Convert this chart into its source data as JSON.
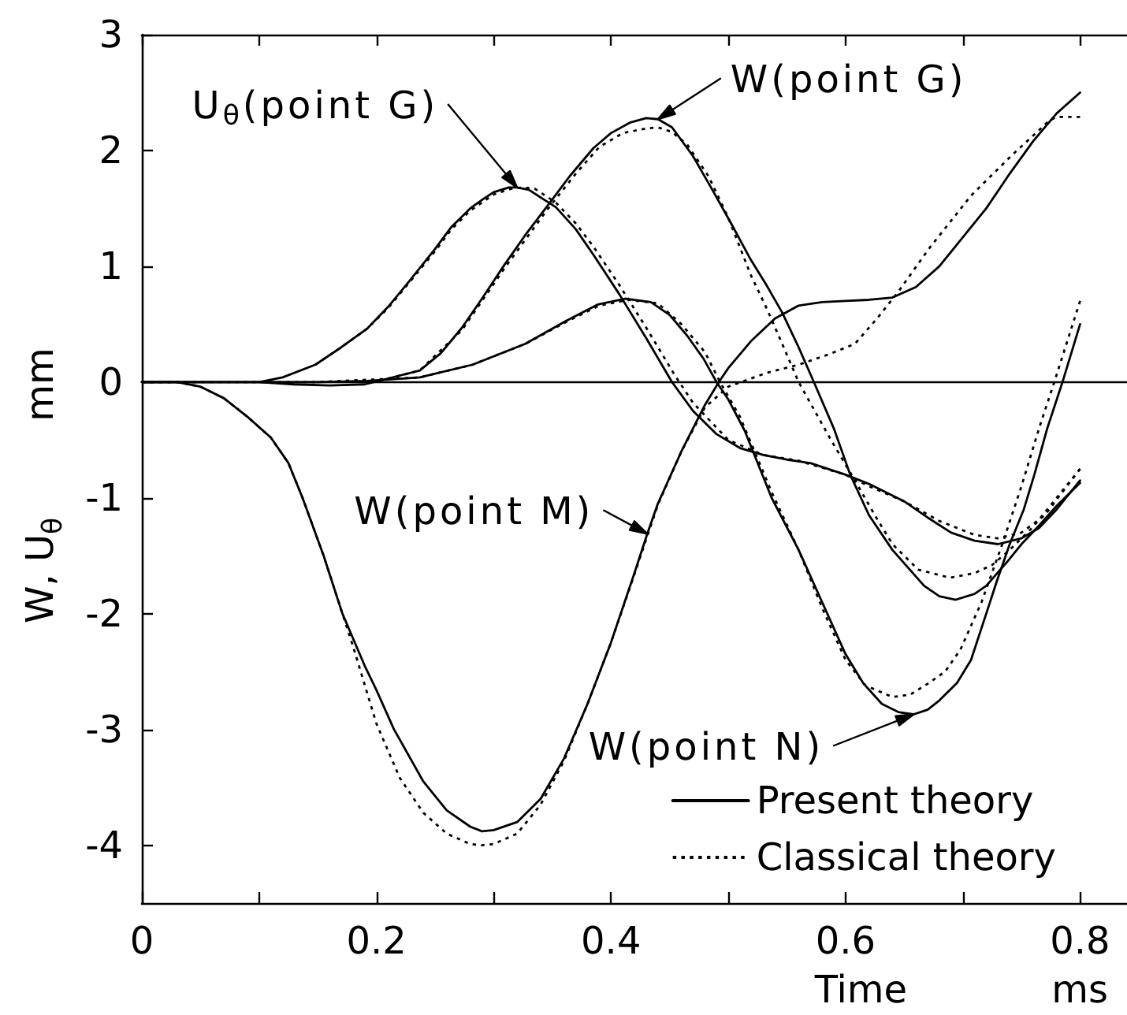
{
  "chart_data": {
    "type": "line",
    "xlabel": "Time            ms",
    "ylabel": "W, U$_{θ}$        mm",
    "xlim": [
      0,
      0.84
    ],
    "xticks": [
      0,
      {
        "value": 0.1,
        "label": null
      },
      0.2,
      {
        "value": 0.3,
        "label": null
      },
      0.4,
      {
        "value": 0.5,
        "label": null
      },
      0.6,
      {
        "value": 0.7,
        "label": null
      },
      0.8
    ],
    "ylim": [
      -4.5,
      3
    ],
    "yticks": [
      -4,
      -3,
      -2,
      -1,
      0,
      1,
      2,
      3
    ],
    "grid": false,
    "legend": "bottom right",
    "ref_lines": [
      {
        "axis": "y",
        "value": 0
      }
    ],
    "annotations": [
      {
        "text": "U$_{θ}$(point G)",
        "x": 0.32,
        "y": 1.68
      },
      {
        "text": "W(point G)",
        "x": 0.44,
        "y": 2.27
      },
      {
        "text": "W(point M)",
        "x": 0.431,
        "y": -1.31
      },
      {
        "text": "W(point N)",
        "x": 0.658,
        "y": -2.87
      }
    ],
    "series": [
      {
        "name": "Present theory",
        "color": "#000000",
        "line_style": "solid",
        "x": [
          0,
          0.1,
          0.13,
          0.16,
          0.19,
          0.21,
          0.237,
          0.255,
          0.273,
          0.29,
          0.309,
          0.327,
          0.345,
          0.365,
          0.385,
          0.4,
          0.416,
          0.43,
          0.44,
          0.452,
          0.47,
          0.487,
          0.503,
          0.519,
          0.533,
          0.546,
          0.56,
          0.573,
          0.59,
          0.604,
          0.62,
          0.64,
          0.667,
          0.68,
          0.694,
          0.71,
          0.72,
          0.738,
          0.75,
          0.765,
          0.78,
          0.8
        ],
        "values": [
          0,
          0,
          -0.02,
          -0.03,
          -0.02,
          0.03,
          0.1,
          0.25,
          0.47,
          0.72,
          1.01,
          1.27,
          1.51,
          1.78,
          2.02,
          2.15,
          2.24,
          2.28,
          2.27,
          2.2,
          1.95,
          1.65,
          1.36,
          1.06,
          0.83,
          0.6,
          0.3,
          0,
          -0.4,
          -0.8,
          -1.15,
          -1.45,
          -1.76,
          -1.85,
          -1.88,
          -1.83,
          -1.76,
          -1.55,
          -1.4,
          -1.24,
          -1.07,
          -0.87
        ]
      },
      {
        "name": "Classical theory",
        "color": "#000000",
        "line_style": "dotted",
        "x": [
          0.21,
          0.237,
          0.273,
          0.309,
          0.345,
          0.37,
          0.39,
          0.41,
          0.43,
          0.44,
          0.452,
          0.465,
          0.483,
          0.5,
          0.519,
          0.533,
          0.546,
          0.56,
          0.587,
          0.608,
          0.625,
          0.64,
          0.662,
          0.689,
          0.71,
          0.725,
          0.74,
          0.76,
          0.78,
          0.8
        ],
        "values": [
          0.03,
          0.1,
          0.45,
          0.98,
          1.48,
          1.8,
          2.03,
          2.15,
          2.19,
          2.2,
          2.16,
          2.05,
          1.78,
          1.42,
          0.93,
          0.63,
          0.33,
          0,
          -0.49,
          -0.85,
          -1.15,
          -1.4,
          -1.62,
          -1.69,
          -1.65,
          -1.58,
          -1.45,
          -1.25,
          -1.0,
          -0.75
        ]
      },
      {
        "color": "#000000",
        "line_style": "solid",
        "x": [
          0.1,
          0.12,
          0.148,
          0.17,
          0.192,
          0.21,
          0.228,
          0.25,
          0.264,
          0.28,
          0.291,
          0.3,
          0.313,
          0.32,
          0.33,
          0.353,
          0.37,
          0.385,
          0.407,
          0.43,
          0.452,
          0.47,
          0.49,
          0.51,
          0.53,
          0.55,
          0.57,
          0.6,
          0.62,
          0.65,
          0.67,
          0.69,
          0.71,
          0.73,
          0.75,
          0.765,
          0.78,
          0.8
        ],
        "values": [
          0,
          0.04,
          0.15,
          0.3,
          0.46,
          0.65,
          0.87,
          1.15,
          1.34,
          1.5,
          1.58,
          1.64,
          1.68,
          1.68,
          1.66,
          1.51,
          1.32,
          1.1,
          0.76,
          0.38,
          0,
          -0.25,
          -0.45,
          -0.57,
          -0.63,
          -0.67,
          -0.7,
          -0.8,
          -0.88,
          -1.03,
          -1.17,
          -1.3,
          -1.37,
          -1.4,
          -1.35,
          -1.26,
          -1.1,
          -0.85
        ]
      },
      {
        "color": "#000000",
        "line_style": "dotted",
        "x": [
          0.148,
          0.17,
          0.192,
          0.21,
          0.228,
          0.25,
          0.264,
          0.28,
          0.3,
          0.315,
          0.325,
          0.335,
          0.353,
          0.37,
          0.385,
          0.407,
          0.43,
          0.455,
          0.47,
          0.5,
          0.53,
          0.56,
          0.6,
          0.62,
          0.65,
          0.68,
          0.71,
          0.73,
          0.75,
          0.77,
          0.8
        ],
        "values": [
          0.15,
          0.3,
          0.46,
          0.64,
          0.86,
          1.13,
          1.32,
          1.48,
          1.62,
          1.67,
          1.68,
          1.67,
          1.55,
          1.37,
          1.17,
          0.84,
          0.47,
          0.05,
          -0.18,
          -0.5,
          -0.63,
          -0.68,
          -0.8,
          -0.9,
          -1.03,
          -1.2,
          -1.32,
          -1.35,
          -1.3,
          -1.15,
          -0.75
        ]
      },
      {
        "color": "#000000",
        "line_style": "solid",
        "x": [
          0,
          0.03,
          0.05,
          0.07,
          0.09,
          0.11,
          0.125,
          0.137,
          0.155,
          0.171,
          0.19,
          0.2,
          0.215,
          0.24,
          0.26,
          0.28,
          0.29,
          0.3,
          0.32,
          0.34,
          0.36,
          0.38,
          0.4,
          0.42,
          0.431,
          0.44,
          0.46,
          0.48,
          0.492,
          0.5,
          0.52,
          0.54,
          0.56,
          0.58,
          0.6,
          0.62,
          0.64,
          0.66,
          0.68,
          0.7,
          0.72,
          0.74,
          0.76,
          0.78,
          0.8
        ],
        "values": [
          0,
          0,
          -0.04,
          -0.14,
          -0.3,
          -0.48,
          -0.7,
          -1.0,
          -1.5,
          -2.0,
          -2.45,
          -2.66,
          -3.0,
          -3.45,
          -3.7,
          -3.84,
          -3.88,
          -3.87,
          -3.8,
          -3.6,
          -3.25,
          -2.78,
          -2.25,
          -1.65,
          -1.31,
          -1.05,
          -0.6,
          -0.2,
          0,
          0.12,
          0.36,
          0.55,
          0.66,
          0.69,
          0.7,
          0.71,
          0.73,
          0.82,
          1.0,
          1.25,
          1.5,
          1.8,
          2.08,
          2.32,
          2.5
        ]
      },
      {
        "color": "#000000",
        "line_style": "dotted",
        "x": [
          0,
          0.03,
          0.05,
          0.07,
          0.09,
          0.11,
          0.125,
          0.137,
          0.155,
          0.171,
          0.18,
          0.2,
          0.22,
          0.24,
          0.26,
          0.28,
          0.29,
          0.3,
          0.32,
          0.34,
          0.36,
          0.38,
          0.4,
          0.42,
          0.44,
          0.46,
          0.48,
          0.5,
          0.533,
          0.56,
          0.586,
          0.608,
          0.627,
          0.645,
          0.671,
          0.707,
          0.742,
          0.774,
          0.78,
          0.8
        ],
        "values": [
          0,
          0,
          -0.04,
          -0.14,
          -0.3,
          -0.48,
          -0.7,
          -1.0,
          -1.5,
          -2.0,
          -2.28,
          -2.95,
          -3.42,
          -3.72,
          -3.9,
          -3.99,
          -4.0,
          -3.99,
          -3.9,
          -3.65,
          -3.27,
          -2.78,
          -2.25,
          -1.66,
          -1.06,
          -0.6,
          -0.22,
          -0.04,
          0.08,
          0.15,
          0.24,
          0.33,
          0.55,
          0.78,
          1.15,
          1.61,
          1.96,
          2.26,
          2.29,
          2.29
        ]
      },
      {
        "color": "#000000",
        "line_style": "solid",
        "x": [
          0,
          0.15,
          0.192,
          0.237,
          0.282,
          0.327,
          0.362,
          0.389,
          0.412,
          0.434,
          0.45,
          0.465,
          0.479,
          0.49,
          0.5,
          0.514,
          0.537,
          0.56,
          0.58,
          0.6,
          0.615,
          0.631,
          0.645,
          0.658,
          0.67,
          0.68,
          0.695,
          0.707,
          0.72,
          0.729,
          0.74,
          0.752,
          0.761,
          0.772,
          0.785,
          0.8
        ],
        "values": [
          0,
          0,
          0.01,
          0.04,
          0.15,
          0.33,
          0.53,
          0.67,
          0.72,
          0.69,
          0.58,
          0.4,
          0.2,
          0,
          -0.15,
          -0.42,
          -1.0,
          -1.45,
          -1.9,
          -2.35,
          -2.6,
          -2.78,
          -2.85,
          -2.87,
          -2.83,
          -2.75,
          -2.6,
          -2.4,
          -2.0,
          -1.72,
          -1.4,
          -1.1,
          -0.8,
          -0.4,
          0,
          0.5
        ]
      },
      {
        "color": "#000000",
        "line_style": "dotted",
        "x": [
          0,
          0.15,
          0.237,
          0.282,
          0.327,
          0.362,
          0.39,
          0.415,
          0.44,
          0.46,
          0.48,
          0.493,
          0.51,
          0.537,
          0.56,
          0.58,
          0.6,
          0.617,
          0.64,
          0.655,
          0.671,
          0.685,
          0.698,
          0.716,
          0.734,
          0.75,
          0.765,
          0.778,
          0.8
        ],
        "values": [
          0,
          0,
          0.04,
          0.15,
          0.33,
          0.52,
          0.66,
          0.71,
          0.68,
          0.5,
          0.26,
          0,
          -0.3,
          -0.95,
          -1.45,
          -1.95,
          -2.4,
          -2.62,
          -2.72,
          -2.7,
          -2.6,
          -2.5,
          -2.31,
          -1.9,
          -1.39,
          -0.9,
          -0.4,
          0,
          0.7
        ]
      }
    ]
  }
}
